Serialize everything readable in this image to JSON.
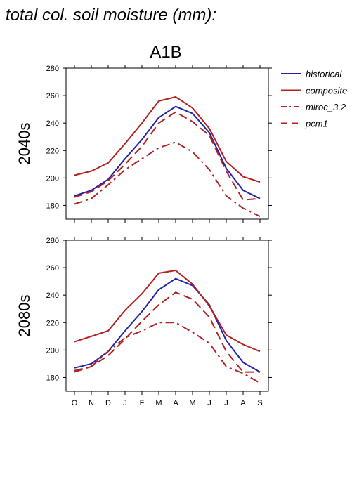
{
  "figure": {
    "title": "total col. soil moisture (mm):",
    "scenario": "A1B"
  },
  "colors": {
    "historical": "#2222aa",
    "composite": "#b22222",
    "miroc_3.2": "#b22222",
    "pcm1": "#b22222"
  },
  "chart_data": [
    {
      "type": "line",
      "panel_label": "2040s",
      "x": [
        "O",
        "N",
        "D",
        "J",
        "F",
        "M",
        "A",
        "M",
        "J",
        "J",
        "A",
        "S"
      ],
      "ylim": [
        170,
        280
      ],
      "yticks": [
        180,
        200,
        220,
        240,
        260,
        280
      ],
      "ytick_labels": [
        "180",
        "200",
        "220",
        "240",
        "260",
        "280"
      ],
      "legend_position": "right, outside",
      "series": [
        {
          "name": "historical",
          "style": "solid",
          "values": [
            187,
            191,
            199,
            214,
            228,
            244,
            252,
            247,
            233,
            207,
            191,
            185
          ]
        },
        {
          "name": "composite",
          "style": "solid",
          "values": [
            202,
            205,
            211,
            225,
            240,
            256,
            259,
            251,
            236,
            212,
            201,
            197
          ]
        },
        {
          "name": "miroc_3.2",
          "style": "dashdot",
          "values": [
            181,
            185,
            195,
            206,
            214,
            222,
            226,
            219,
            206,
            187,
            178,
            172
          ]
        },
        {
          "name": "pcm1",
          "style": "dashed",
          "values": [
            186,
            190,
            198,
            210,
            223,
            240,
            248,
            241,
            231,
            205,
            184,
            185
          ]
        }
      ]
    },
    {
      "type": "line",
      "panel_label": "2080s",
      "x": [
        "O",
        "N",
        "D",
        "J",
        "F",
        "M",
        "A",
        "M",
        "J",
        "J",
        "A",
        "S"
      ],
      "ylim": [
        170,
        280
      ],
      "yticks": [
        180,
        200,
        220,
        240,
        260,
        280
      ],
      "ytick_labels": [
        "180",
        "200",
        "220",
        "240",
        "260",
        "280"
      ],
      "series": [
        {
          "name": "historical",
          "style": "solid",
          "values": [
            187,
            190,
            199,
            214,
            228,
            244,
            252,
            247,
            233,
            207,
            191,
            184
          ]
        },
        {
          "name": "composite",
          "style": "solid",
          "values": [
            206,
            210,
            214,
            229,
            241,
            256,
            258,
            248,
            232,
            211,
            204,
            199
          ]
        },
        {
          "name": "miroc_3.2",
          "style": "dashdot",
          "values": [
            185,
            188,
            199,
            209,
            214,
            220,
            220,
            213,
            205,
            188,
            183,
            176
          ]
        },
        {
          "name": "pcm1",
          "style": "dashed",
          "values": [
            184,
            188,
            196,
            208,
            221,
            233,
            242,
            237,
            224,
            199,
            184,
            184
          ]
        }
      ]
    }
  ]
}
